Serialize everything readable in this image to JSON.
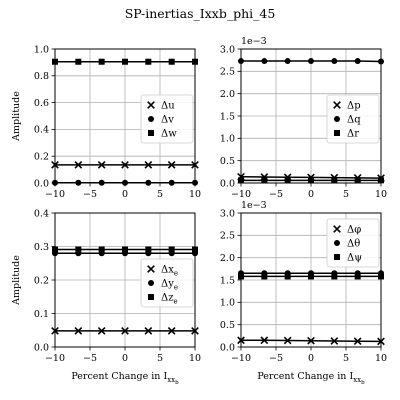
{
  "title": "SP-inertias_Ixxb_phi_45",
  "x_ticks": [
    -10,
    -5,
    0,
    5,
    10
  ],
  "x_values": [
    -10,
    -6.667,
    -3.333,
    0,
    3.333,
    6.667,
    10
  ],
  "chart_data": [
    {
      "type": "line",
      "position": "top-left",
      "ylabel": "Amplitude",
      "xlabel": "",
      "xlim": [
        -10,
        10
      ],
      "ylim": [
        0,
        1.0
      ],
      "y_ticks": [
        "0.0",
        "0.2",
        "0.4",
        "0.6",
        "0.8",
        "1.0"
      ],
      "y_tick_values": [
        0,
        0.2,
        0.4,
        0.6,
        0.8,
        1.0
      ],
      "scale_label": "",
      "grid": true,
      "legend_position": "center-right",
      "series": [
        {
          "name": "Δu",
          "marker": "x",
          "values": [
            0.135,
            0.135,
            0.135,
            0.135,
            0.135,
            0.135,
            0.135
          ]
        },
        {
          "name": "Δv",
          "marker": "o",
          "values": [
            0.002,
            0.002,
            0.002,
            0.002,
            0.002,
            0.002,
            0.002
          ]
        },
        {
          "name": "Δw",
          "marker": "s",
          "values": [
            0.905,
            0.905,
            0.905,
            0.905,
            0.905,
            0.905,
            0.905
          ]
        }
      ]
    },
    {
      "type": "line",
      "position": "top-right",
      "ylabel": "",
      "xlabel": "",
      "xlim": [
        -10,
        10
      ],
      "ylim": [
        0,
        3.0
      ],
      "y_ticks": [
        "0.0",
        "0.5",
        "1.0",
        "1.5",
        "2.0",
        "2.5",
        "3.0"
      ],
      "y_tick_values": [
        0,
        0.5,
        1.0,
        1.5,
        2.0,
        2.5,
        3.0
      ],
      "scale_label": "1e−3",
      "grid": true,
      "legend_position": "center-right",
      "series": [
        {
          "name": "Δp",
          "marker": "x",
          "values": [
            0.14,
            0.135,
            0.13,
            0.125,
            0.12,
            0.115,
            0.11
          ]
        },
        {
          "name": "Δq",
          "marker": "o",
          "values": [
            2.73,
            2.73,
            2.73,
            2.73,
            2.73,
            2.73,
            2.72
          ]
        },
        {
          "name": "Δr",
          "marker": "s",
          "values": [
            0.06,
            0.06,
            0.06,
            0.06,
            0.06,
            0.06,
            0.06
          ]
        }
      ]
    },
    {
      "type": "line",
      "position": "bottom-left",
      "ylabel": "Amplitude",
      "xlabel": "Percent Change in I_xx_b",
      "xlim": [
        -10,
        10
      ],
      "ylim": [
        0,
        0.4
      ],
      "y_ticks": [
        "0.0",
        "0.1",
        "0.2",
        "0.3",
        "0.4"
      ],
      "y_tick_values": [
        0,
        0.1,
        0.2,
        0.3,
        0.4
      ],
      "scale_label": "",
      "grid": true,
      "legend_position": "center-right",
      "series": [
        {
          "name": "Δx_e",
          "marker": "x",
          "values": [
            0.048,
            0.048,
            0.048,
            0.048,
            0.048,
            0.048,
            0.048
          ]
        },
        {
          "name": "Δy_e",
          "marker": "o",
          "values": [
            0.28,
            0.28,
            0.28,
            0.28,
            0.28,
            0.28,
            0.28
          ]
        },
        {
          "name": "Δz_e",
          "marker": "s",
          "values": [
            0.291,
            0.291,
            0.291,
            0.291,
            0.291,
            0.291,
            0.291
          ]
        }
      ]
    },
    {
      "type": "line",
      "position": "bottom-right",
      "ylabel": "",
      "xlabel": "Percent Change in I_xx_b",
      "xlim": [
        -10,
        10
      ],
      "ylim": [
        0,
        3.0
      ],
      "y_ticks": [
        "0.0",
        "0.5",
        "1.0",
        "1.5",
        "2.0",
        "2.5",
        "3.0"
      ],
      "y_tick_values": [
        0,
        0.5,
        1.0,
        1.5,
        2.0,
        2.5,
        3.0
      ],
      "scale_label": "1e−3",
      "grid": true,
      "legend_position": "top-right",
      "series": [
        {
          "name": "Δφ",
          "marker": "x",
          "values": [
            0.15,
            0.15,
            0.145,
            0.14,
            0.135,
            0.13,
            0.125
          ]
        },
        {
          "name": "Δθ",
          "marker": "o",
          "values": [
            1.65,
            1.65,
            1.65,
            1.65,
            1.65,
            1.65,
            1.65
          ]
        },
        {
          "name": "Δψ",
          "marker": "s",
          "values": [
            1.58,
            1.58,
            1.58,
            1.58,
            1.58,
            1.58,
            1.58
          ]
        }
      ]
    }
  ]
}
